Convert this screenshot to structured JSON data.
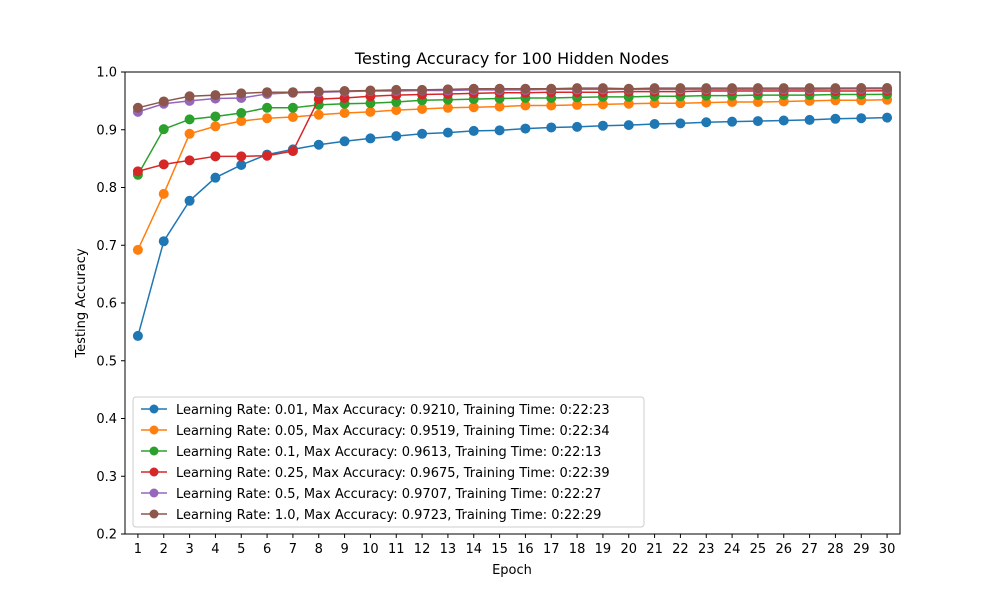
{
  "chart_data": {
    "type": "line",
    "title": "Testing Accuracy for 100 Hidden Nodes",
    "xlabel": "Epoch",
    "ylabel": "Testing Accuracy",
    "x": [
      1,
      2,
      3,
      4,
      5,
      6,
      7,
      8,
      9,
      10,
      11,
      12,
      13,
      14,
      15,
      16,
      17,
      18,
      19,
      20,
      21,
      22,
      23,
      24,
      25,
      26,
      27,
      28,
      29,
      30
    ],
    "xlim": [
      0.5,
      30.5
    ],
    "ylim": [
      0.2,
      1.0
    ],
    "yticks": [
      0.2,
      0.3,
      0.4,
      0.5,
      0.6,
      0.7,
      0.8,
      0.9,
      1.0
    ],
    "ytick_labels": [
      "0.2",
      "0.3",
      "0.4",
      "0.5",
      "0.6",
      "0.7",
      "0.8",
      "0.9",
      "1.0"
    ],
    "grid": false,
    "legend_position": "bottom-left",
    "series": [
      {
        "name": "Learning Rate: 0.01, Max Accuracy: 0.9210, Training Time: 0:22:23",
        "color": "#1f77b4",
        "values": [
          0.543,
          0.707,
          0.777,
          0.817,
          0.839,
          0.857,
          0.866,
          0.874,
          0.88,
          0.885,
          0.889,
          0.893,
          0.895,
          0.898,
          0.899,
          0.902,
          0.904,
          0.905,
          0.907,
          0.908,
          0.91,
          0.911,
          0.913,
          0.914,
          0.915,
          0.916,
          0.917,
          0.919,
          0.92,
          0.921
        ]
      },
      {
        "name": "Learning Rate: 0.05, Max Accuracy: 0.9519, Training Time: 0:22:34",
        "color": "#ff7f0e",
        "values": [
          0.692,
          0.789,
          0.893,
          0.906,
          0.915,
          0.92,
          0.922,
          0.926,
          0.929,
          0.931,
          0.934,
          0.936,
          0.938,
          0.939,
          0.94,
          0.942,
          0.942,
          0.943,
          0.944,
          0.945,
          0.946,
          0.946,
          0.947,
          0.948,
          0.948,
          0.949,
          0.95,
          0.951,
          0.951,
          0.9519
        ]
      },
      {
        "name": "Learning Rate: 0.1, Max Accuracy: 0.9613, Training Time: 0:22:13",
        "color": "#2ca02c",
        "values": [
          0.822,
          0.901,
          0.918,
          0.923,
          0.929,
          0.938,
          0.938,
          0.943,
          0.945,
          0.946,
          0.948,
          0.951,
          0.952,
          0.953,
          0.954,
          0.955,
          0.955,
          0.956,
          0.957,
          0.957,
          0.958,
          0.958,
          0.959,
          0.959,
          0.96,
          0.96,
          0.96,
          0.961,
          0.961,
          0.9613
        ]
      },
      {
        "name": "Learning Rate: 0.25, Max Accuracy: 0.9675, Training Time: 0:22:39",
        "color": "#d62728",
        "values": [
          0.828,
          0.84,
          0.847,
          0.854,
          0.854,
          0.855,
          0.863,
          0.953,
          0.955,
          0.958,
          0.96,
          0.961,
          0.962,
          0.963,
          0.964,
          0.964,
          0.965,
          0.965,
          0.965,
          0.966,
          0.966,
          0.966,
          0.967,
          0.967,
          0.967,
          0.967,
          0.967,
          0.967,
          0.967,
          0.9675
        ]
      },
      {
        "name": "Learning Rate: 0.5, Max Accuracy: 0.9707, Training Time: 0:22:27",
        "color": "#9467bd",
        "values": [
          0.931,
          0.945,
          0.95,
          0.954,
          0.955,
          0.962,
          0.964,
          0.965,
          0.966,
          0.967,
          0.967,
          0.968,
          0.968,
          0.969,
          0.969,
          0.969,
          0.97,
          0.97,
          0.97,
          0.97,
          0.97,
          0.97,
          0.97,
          0.97,
          0.97,
          0.97,
          0.97,
          0.9705,
          0.9707,
          0.9707
        ]
      },
      {
        "name": "Learning Rate: 1.0, Max Accuracy: 0.9723, Training Time: 0:22:29",
        "color": "#8c564b",
        "values": [
          0.938,
          0.949,
          0.958,
          0.96,
          0.963,
          0.965,
          0.965,
          0.966,
          0.967,
          0.968,
          0.969,
          0.969,
          0.97,
          0.971,
          0.971,
          0.971,
          0.971,
          0.972,
          0.972,
          0.971,
          0.972,
          0.972,
          0.972,
          0.972,
          0.972,
          0.972,
          0.972,
          0.972,
          0.9723,
          0.9723
        ]
      }
    ]
  }
}
